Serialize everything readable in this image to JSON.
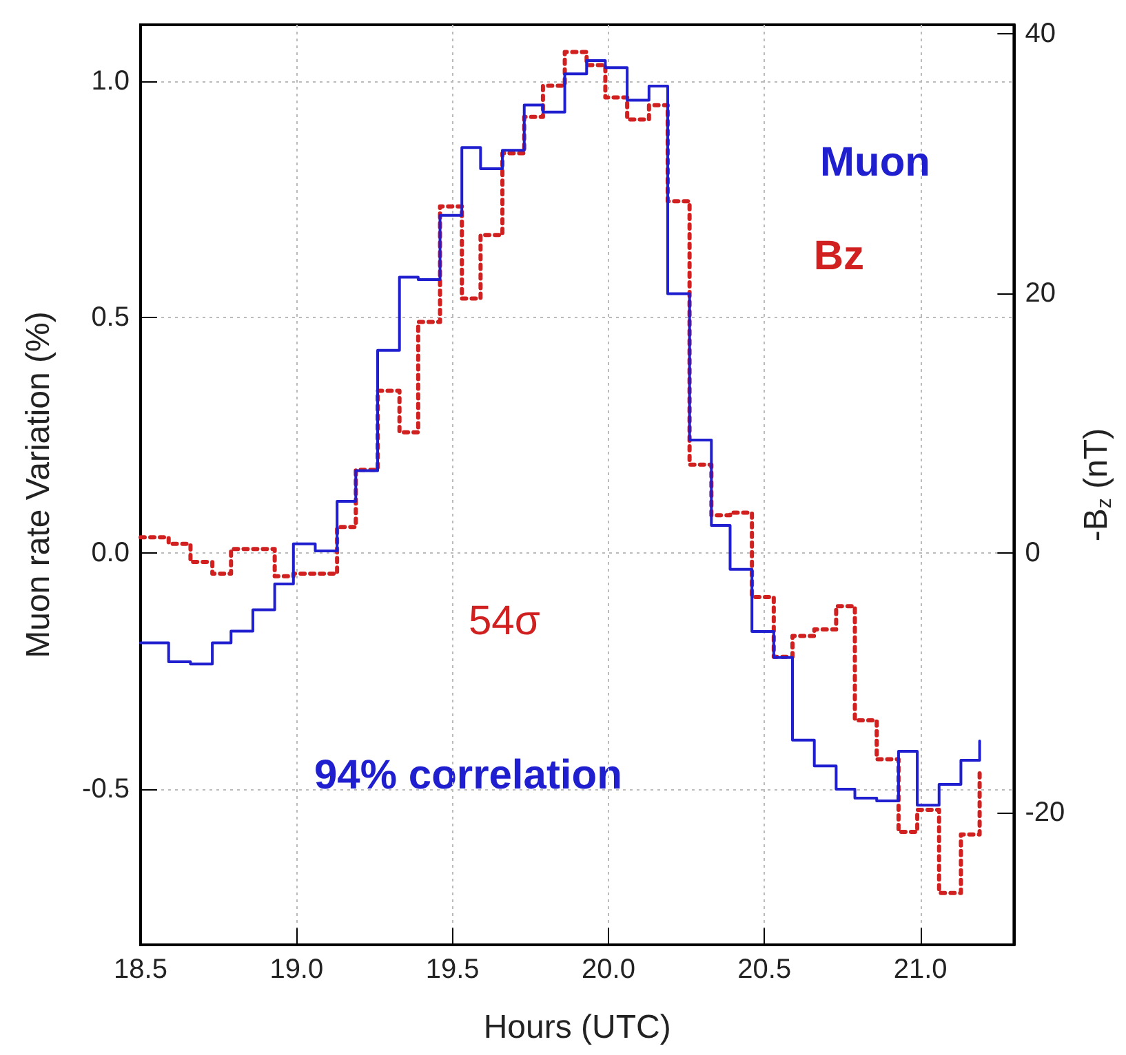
{
  "chart_data": {
    "type": "step",
    "xlabel": "Hours (UTC)",
    "ylabel": "Muon rate Variation (%)",
    "y2label": "-B$_{z}$ (nT)",
    "x": [
      18.5,
      18.59,
      18.66,
      18.73,
      18.79,
      18.86,
      18.93,
      18.99,
      19.06,
      19.13,
      19.19,
      19.26,
      19.33,
      19.39,
      19.46,
      19.53,
      19.59,
      19.66,
      19.73,
      19.79,
      19.86,
      19.93,
      19.99,
      20.06,
      20.13,
      20.19,
      20.26,
      20.33,
      20.39,
      20.46,
      20.53,
      20.59,
      20.66,
      20.73,
      20.79,
      20.86,
      20.93,
      20.99,
      21.06,
      21.13,
      21.19
    ],
    "series": [
      {
        "name": "Muon",
        "color": "#1f1fd0",
        "line_style": "solid",
        "values": [
          -0.19,
          -0.23,
          -0.235,
          -0.19,
          -0.165,
          -0.12,
          -0.065,
          0.02,
          0.005,
          0.11,
          0.175,
          0.43,
          0.585,
          0.58,
          0.716,
          0.86,
          0.815,
          0.854,
          0.95,
          0.935,
          1.016,
          1.044,
          1.029,
          0.96,
          0.99,
          0.55,
          0.24,
          0.059,
          -0.034,
          -0.166,
          -0.221,
          -0.396,
          -0.451,
          -0.5,
          -0.519,
          -0.525,
          -0.42,
          -0.534,
          -0.49,
          -0.439,
          -0.398
        ]
      },
      {
        "name": "Bz",
        "color": "#d02020",
        "line_style": "dotted",
        "axis": "y2",
        "values": [
          1.2,
          0.7,
          -0.7,
          -1.6,
          0.3,
          0.3,
          -1.8,
          -1.6,
          -1.6,
          2.0,
          6.4,
          12.5,
          9.3,
          17.8,
          26.7,
          19.6,
          24.5,
          30.8,
          33.6,
          36.0,
          38.6,
          37.6,
          35.1,
          33.4,
          34.5,
          27.1,
          6.8,
          2.9,
          3.1,
          -3.4,
          -8.0,
          -6.4,
          -5.9,
          -4.1,
          -12.9,
          -15.9,
          -21.5,
          -19.8,
          -26.2,
          -21.7,
          -16.7
        ]
      }
    ],
    "xlim": [
      18.5,
      21.3
    ],
    "xticks": [
      {
        "value": 18.5,
        "label": "18.5"
      },
      {
        "value": 19,
        "label": "19.0"
      },
      {
        "value": 19.5,
        "label": "19.5"
      },
      {
        "value": 20,
        "label": "20.0"
      },
      {
        "value": 20.5,
        "label": "20.5"
      },
      {
        "value": 21,
        "label": "21.0"
      }
    ],
    "ylim": [
      -0.83,
      1.12
    ],
    "yticks": [
      -0.5,
      {
        "value": 0,
        "label": "0.0"
      },
      0.5,
      {
        "value": 1,
        "label": "1.0"
      }
    ],
    "y2lim": [
      -30.2,
      40.7
    ],
    "y2ticks": [
      -20,
      0,
      20,
      40
    ],
    "annotations": [
      "54σ",
      "94% correlation"
    ],
    "grid": true,
    "legend": "top right",
    "marker": "none"
  }
}
